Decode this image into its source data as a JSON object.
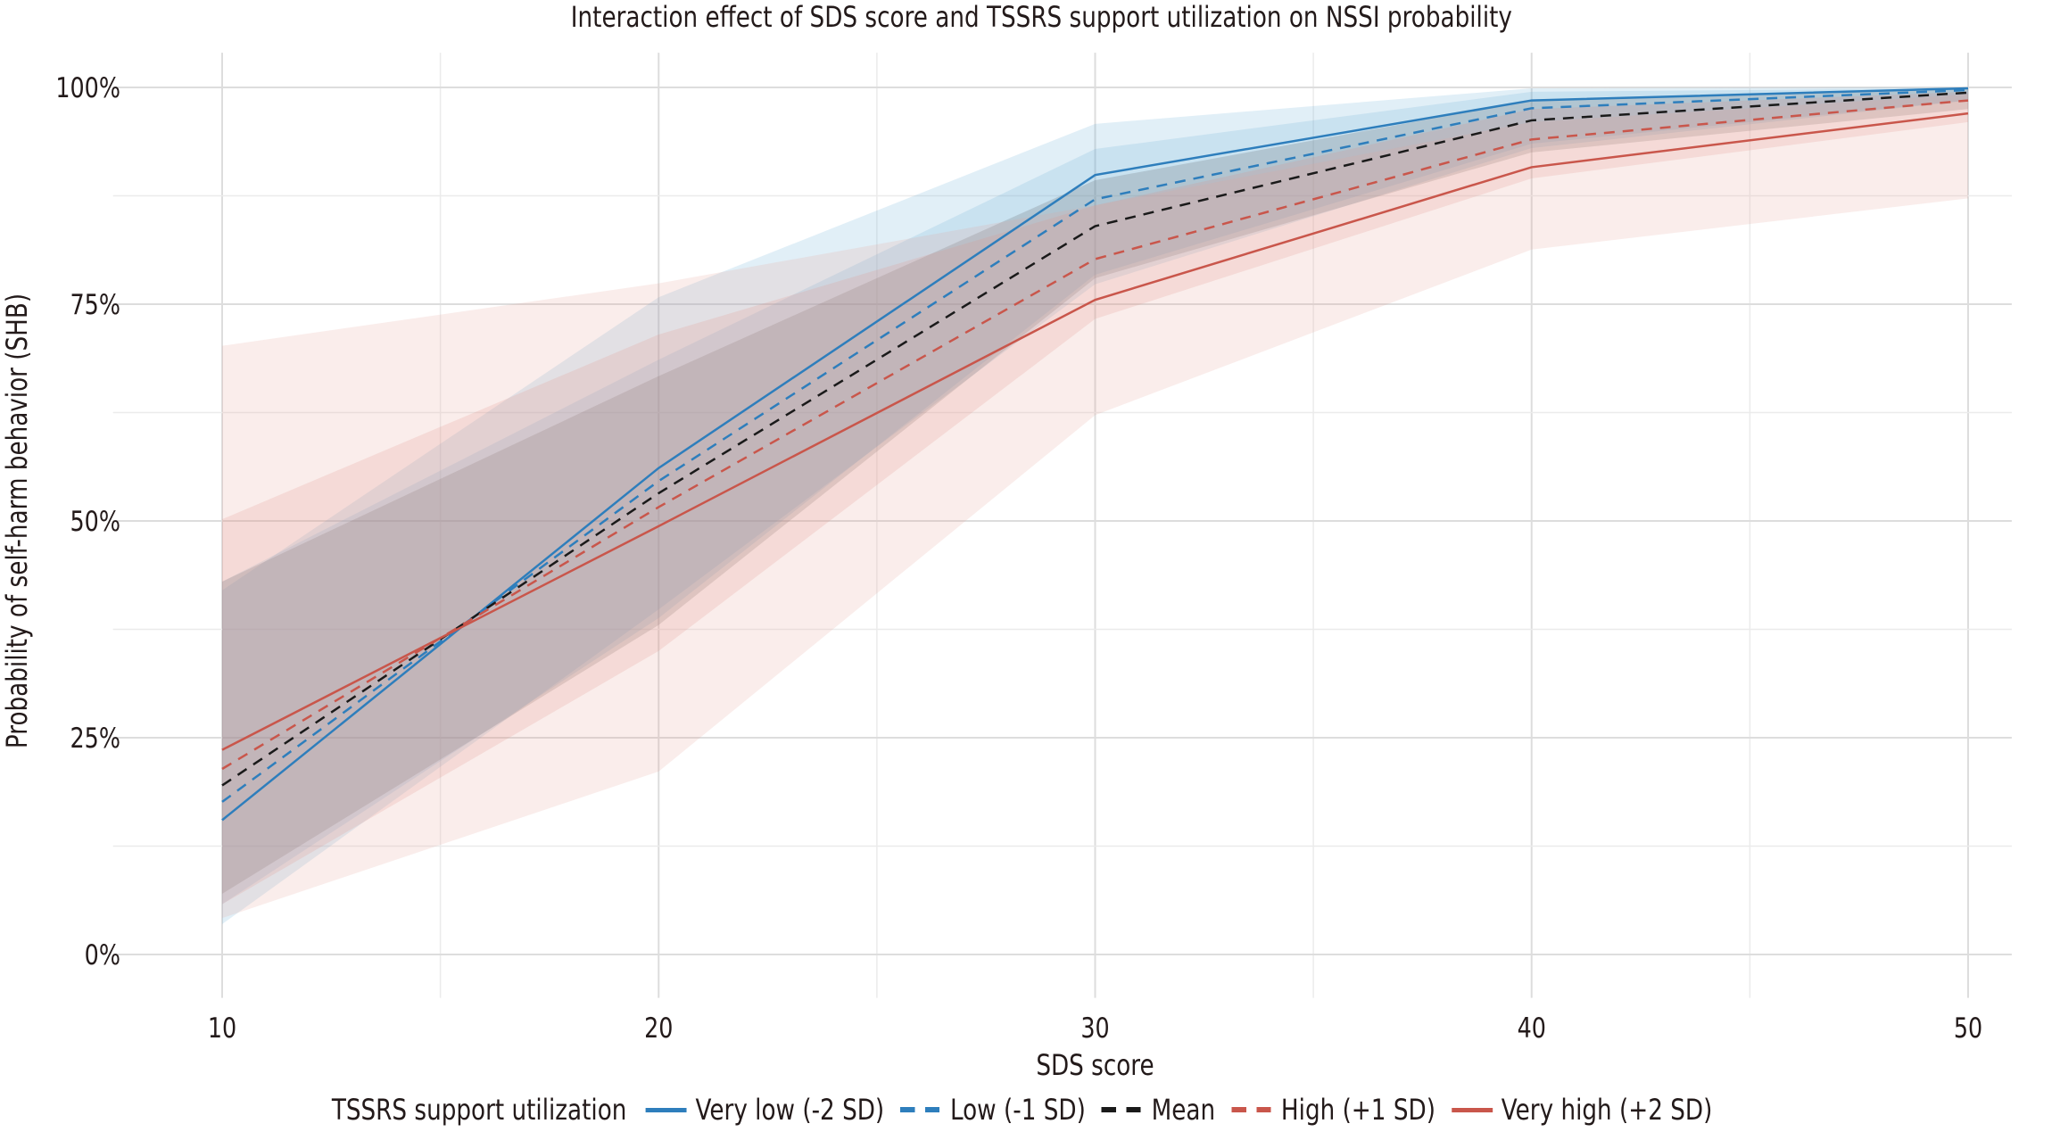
{
  "chart_data": {
    "type": "line",
    "title": "Interaction effect of SDS score and TSSRS support utilization on NSSI probability",
    "xlabel": "SDS score",
    "ylabel": "Probability of self-harm behavior (SHB)",
    "x": [
      10,
      20,
      30,
      40,
      50
    ],
    "xlim": [
      7.5,
      51
    ],
    "ylim": [
      -0.05,
      1.04
    ],
    "x_ticks": [
      10,
      20,
      30,
      40,
      50
    ],
    "x_tick_labels": [
      "10",
      "20",
      "30",
      "40",
      "50"
    ],
    "y_ticks": [
      0,
      0.25,
      0.5,
      0.75,
      1.0
    ],
    "y_tick_labels": [
      "0%",
      "25%",
      "50%",
      "75%",
      "100%"
    ],
    "grid": true,
    "legend": {
      "title": "TSSRS support utilization",
      "placement": "bottom"
    },
    "series": [
      {
        "name": "Very low (-2 SD)",
        "color": "#2e7ebc",
        "dash": "solid",
        "values": [
          0.155,
          0.561,
          0.899,
          0.985,
          0.999
        ],
        "ci_lower": [
          0.035,
          0.398,
          0.773,
          0.93,
          0.985
        ],
        "ci_upper": [
          0.42,
          0.758,
          0.958,
          0.999,
          1.0
        ]
      },
      {
        "name": "Low (-1 SD)",
        "color": "#2e7ebc",
        "dash": "dashed",
        "values": [
          0.176,
          0.546,
          0.871,
          0.976,
          0.997
        ],
        "ci_lower": [
          0.058,
          0.388,
          0.784,
          0.935,
          0.985
        ],
        "ci_upper": [
          0.43,
          0.686,
          0.929,
          0.995,
          0.999
        ]
      },
      {
        "name": "Mean",
        "color": "#1a1a1a",
        "dash": "dashed",
        "values": [
          0.195,
          0.532,
          0.84,
          0.962,
          0.994
        ],
        "ci_lower": [
          0.07,
          0.38,
          0.78,
          0.925,
          0.975
        ],
        "ci_upper": [
          0.43,
          0.667,
          0.893,
          0.985,
          0.999
        ]
      },
      {
        "name": "High (+1 SD)",
        "color": "#c9564b",
        "dash": "dashed",
        "values": [
          0.214,
          0.516,
          0.802,
          0.94,
          0.985
        ],
        "ci_lower": [
          0.058,
          0.35,
          0.733,
          0.895,
          0.96
        ],
        "ci_upper": [
          0.502,
          0.715,
          0.864,
          0.975,
          0.995
        ]
      },
      {
        "name": "Very high (+2 SD)",
        "color": "#c9564b",
        "dash": "solid",
        "values": [
          0.236,
          0.494,
          0.755,
          0.908,
          0.97
        ],
        "ci_lower": [
          0.042,
          0.211,
          0.622,
          0.813,
          0.872
        ],
        "ci_upper": [
          0.702,
          0.774,
          0.864,
          0.96,
          0.992
        ]
      }
    ]
  }
}
